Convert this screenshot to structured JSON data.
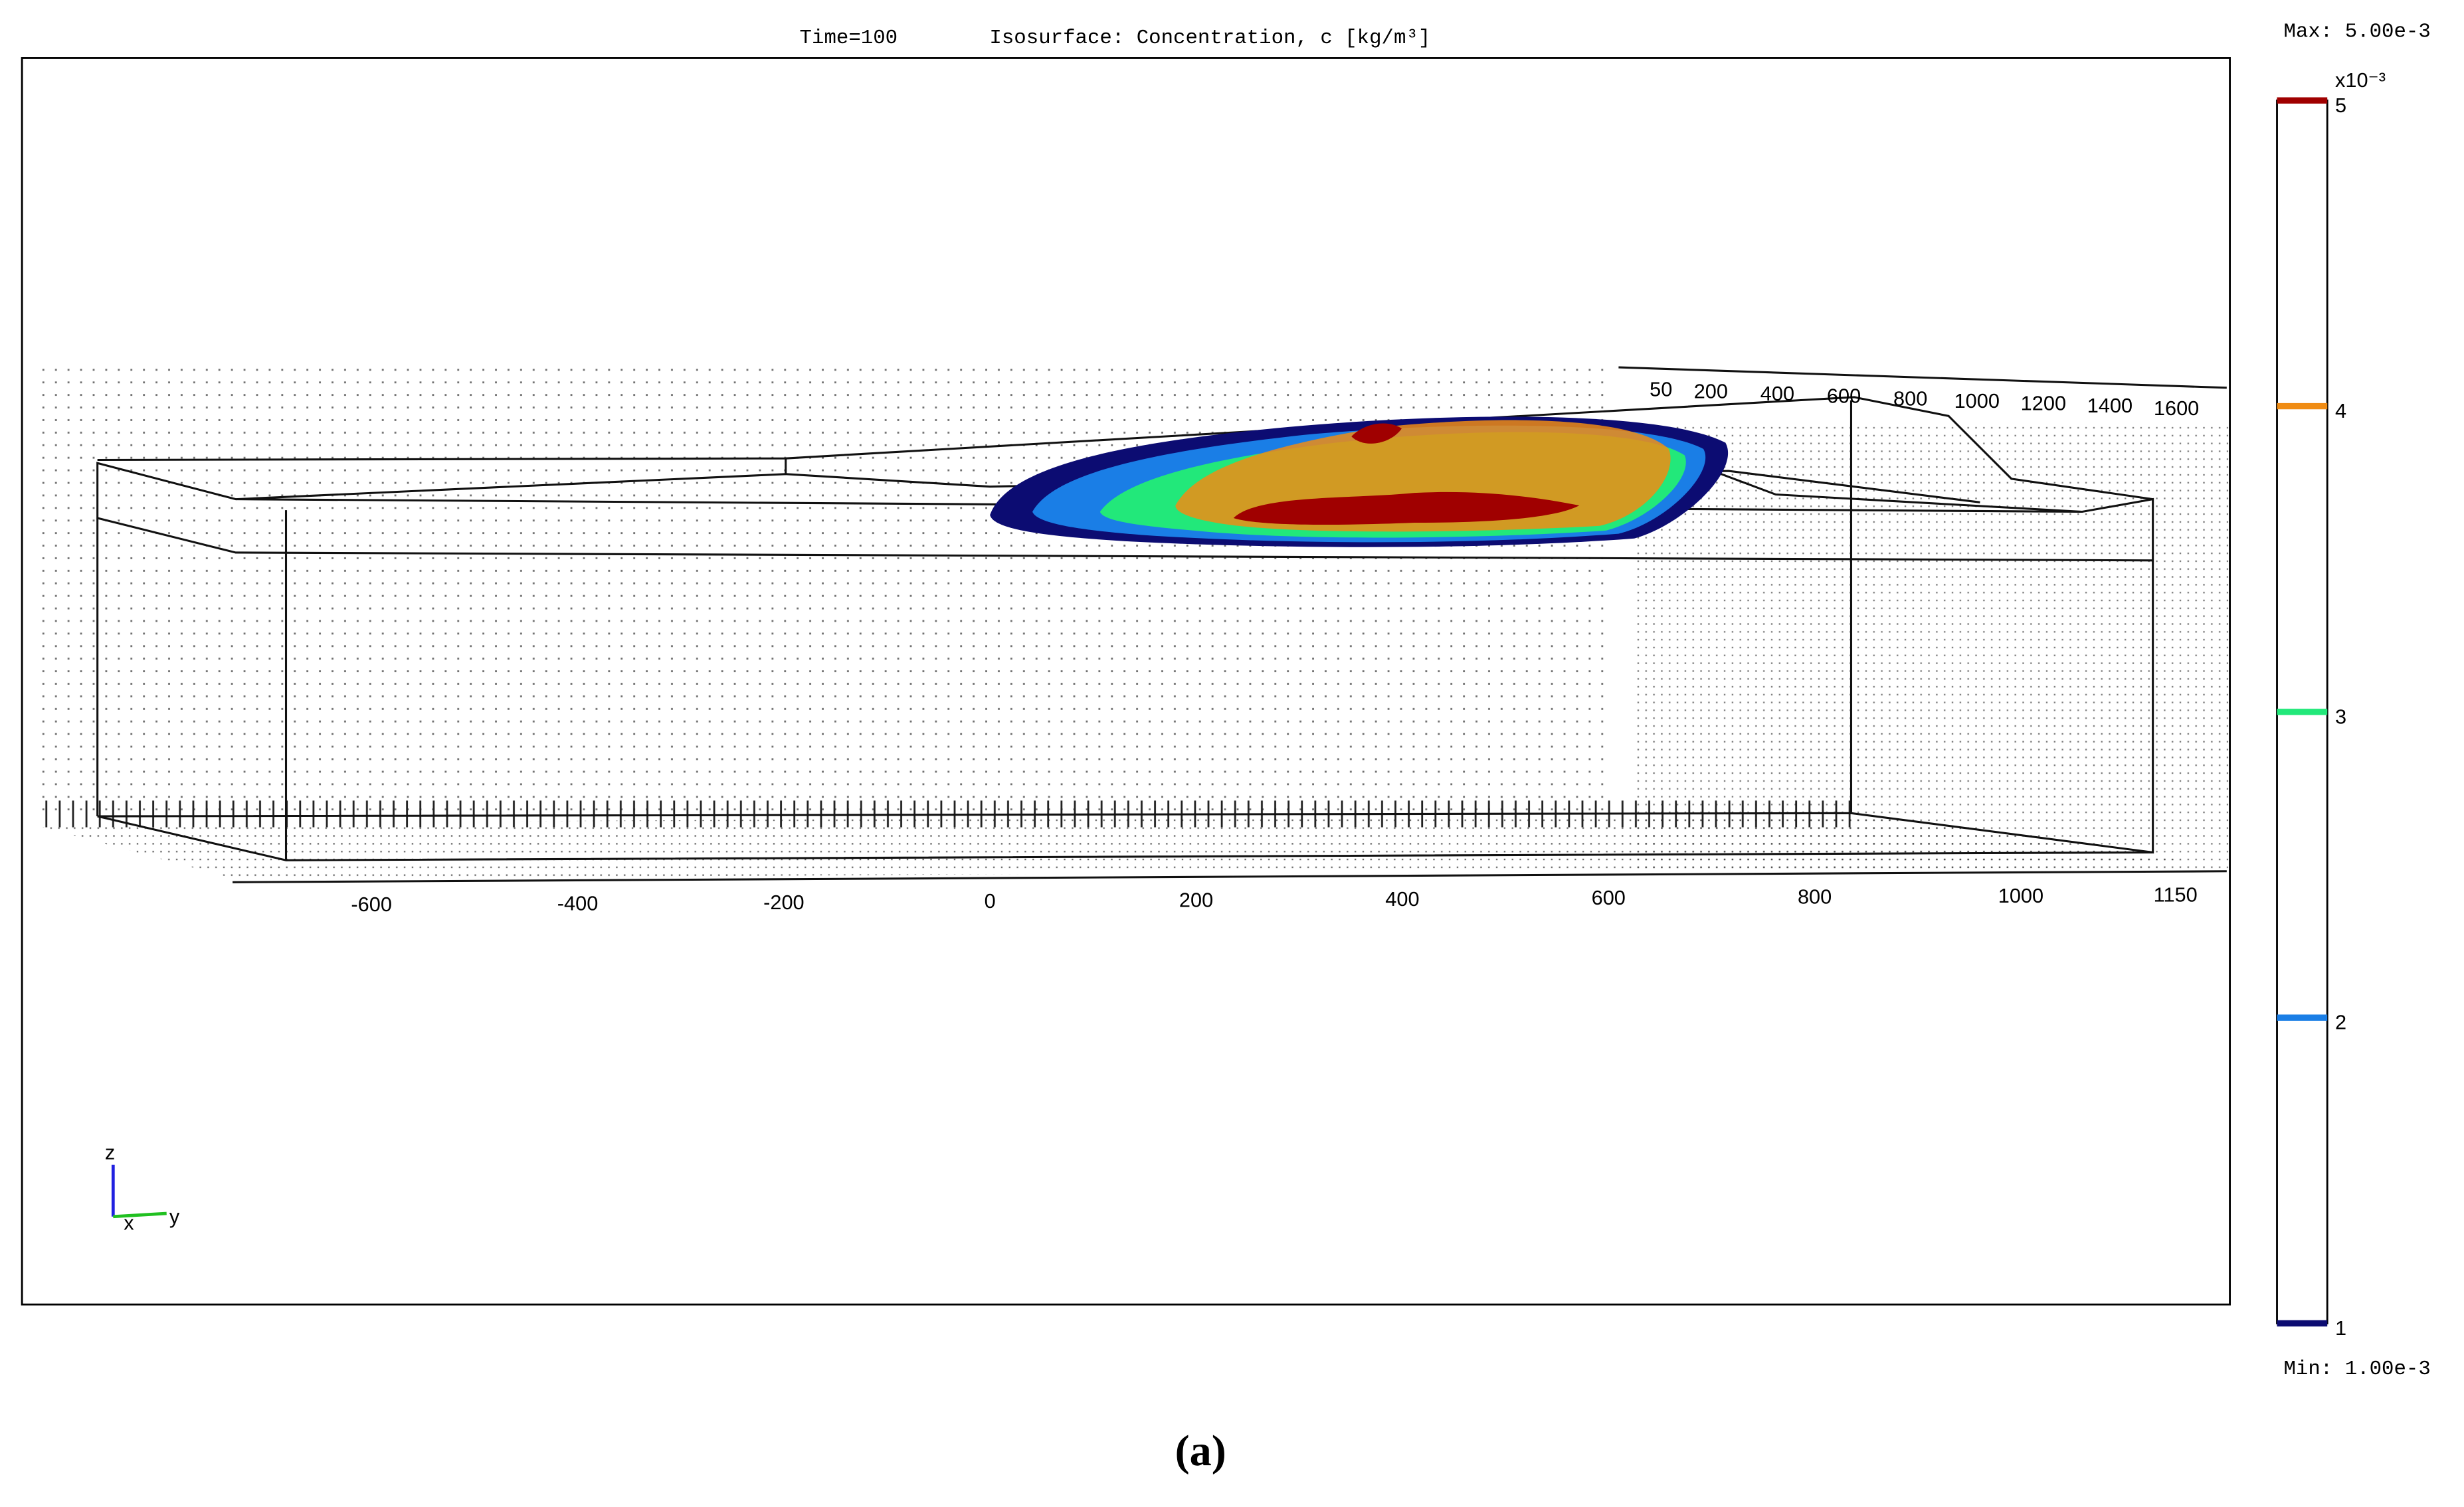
{
  "chart_data": {
    "type": "isosurface",
    "time_label": "Time=100",
    "title": "Isosurface: Concentration, c [kg/m³]",
    "xticks": [
      -600,
      -400,
      -200,
      0,
      200,
      400,
      600,
      800,
      1000,
      1150
    ],
    "yticks": [
      50,
      200,
      400,
      600,
      800,
      1000,
      1200,
      1400,
      1600
    ],
    "axis_labels": {
      "z": "z",
      "x": "x",
      "y": "y"
    },
    "colorbar": {
      "max_label": "Max: 5.00e-3",
      "min_label": "Min: 1.00e-3",
      "multiplier": "x10⁻³",
      "lim": [
        1,
        5
      ],
      "ticks": [
        1,
        2,
        3,
        4,
        5
      ],
      "colors": [
        "#0c0c72",
        "#1a7ee6",
        "#22e87a",
        "#f08c14",
        "#a00000"
      ]
    },
    "caption": "(a)"
  }
}
